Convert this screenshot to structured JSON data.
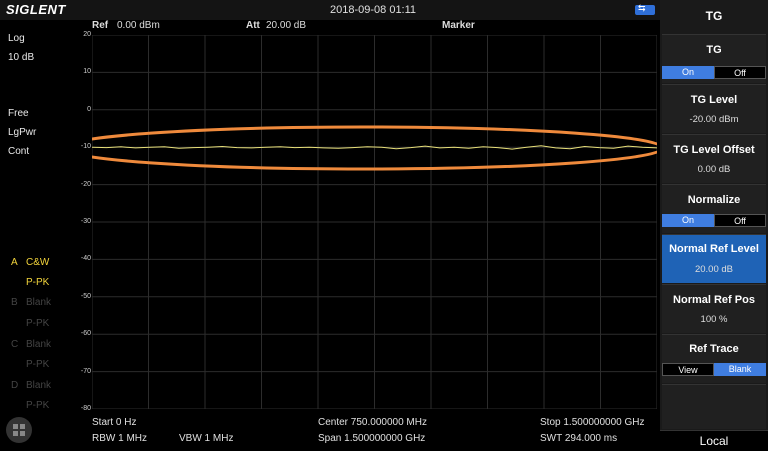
{
  "brand": "SIGLENT",
  "datetime": "2018-09-08 01:11",
  "header": {
    "ref_label": "Ref",
    "ref_value": "0.00 dBm",
    "att_label": "Att",
    "att_value": "20.00 dB",
    "marker": "Marker"
  },
  "left": {
    "scale": "Log",
    "div": "10 dB",
    "free": "Free",
    "det": "LgPwr",
    "sweep": "Cont",
    "traces": [
      {
        "letter": "A",
        "name": "C&W",
        "mode": "P-PK"
      },
      {
        "letter": "B",
        "name": "Blank",
        "mode": "P-PK"
      },
      {
        "letter": "C",
        "name": "Blank",
        "mode": "P-PK"
      },
      {
        "letter": "D",
        "name": "Blank",
        "mode": "P-PK"
      }
    ]
  },
  "y_ticks": [
    "20",
    "10",
    "0",
    "-10",
    "-20",
    "-30",
    "-40",
    "-50",
    "-60",
    "-70",
    "-80"
  ],
  "bottom": {
    "start": "Start  0 Hz",
    "rbw": "RBW  1 MHz",
    "vbw": "VBW  1 MHz",
    "center": "Center  750.000000 MHz",
    "span": "Span  1.500000000 GHz",
    "stop": "Stop  1.500000000 GHz",
    "swt": "SWT  294.000 ms"
  },
  "right_panel": {
    "title": "TG",
    "tg": {
      "label": "TG",
      "on": "On",
      "off": "Off"
    },
    "tg_level": {
      "label": "TG Level",
      "value": "-20.00 dBm"
    },
    "tg_level_offset": {
      "label": "TG Level Offset",
      "value": "0.00 dB"
    },
    "normalize": {
      "label": "Normalize",
      "on": "On",
      "off": "Off"
    },
    "normal_ref_level": {
      "label": "Normal Ref Level",
      "value": "20.00 dB"
    },
    "normal_ref_pos": {
      "label": "Normal Ref Pos",
      "value": "100 %"
    },
    "ref_trace": {
      "label": "Ref Trace",
      "view": "View",
      "blank": "Blank"
    },
    "local": "Local"
  },
  "colors": {
    "trace": "#e8e07a",
    "highlight": "#ef8a3c",
    "accent": "#3f7de0"
  },
  "chart_data": {
    "type": "line",
    "ylim": [
      -80,
      20
    ],
    "x_range_hz": [
      0,
      1500000000
    ],
    "y_unit": "dBm",
    "series": [
      {
        "values": [
          -10.0,
          -10.1,
          -9.9,
          -10.2,
          -10.0,
          -9.9,
          -10.3,
          -10.1,
          -10.0,
          -9.8,
          -10.1,
          -10.2,
          -10.0,
          -9.9,
          -10.1,
          -10.0,
          -10.2,
          -10.3,
          -10.1,
          -9.9,
          -10.0,
          -10.4,
          -10.1,
          -9.7,
          -10.2,
          -10.0,
          -10.3,
          -9.9,
          -10.1,
          -10.5,
          -10.0,
          -9.6,
          -10.2,
          -10.4,
          -9.8,
          -10.1,
          -10.3,
          -9.7,
          -10.0,
          -10.2
        ]
      }
    ]
  }
}
